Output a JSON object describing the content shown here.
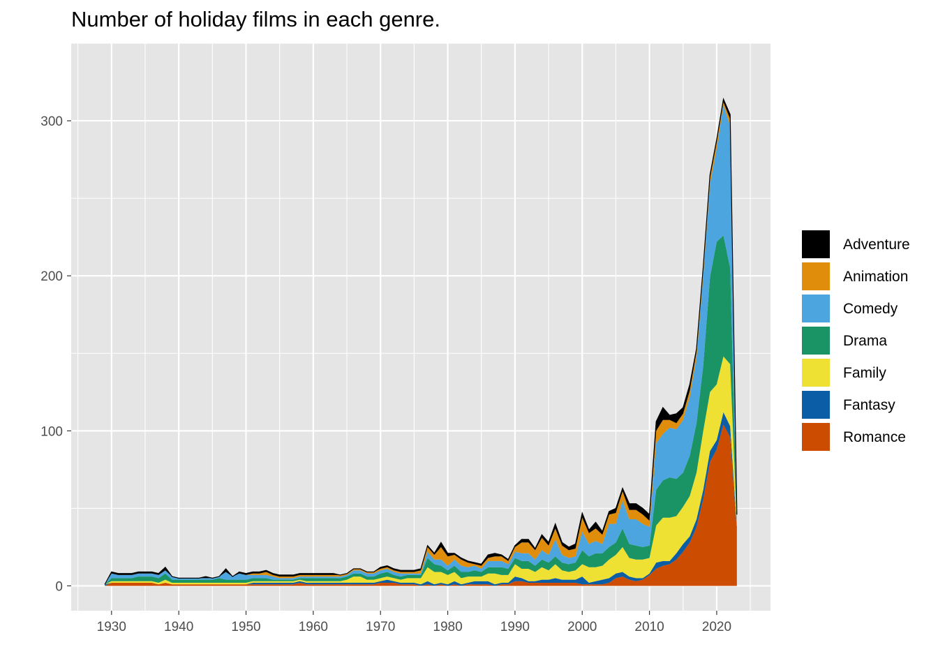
{
  "chart_data": {
    "type": "area",
    "stacked": true,
    "title": "Number of holiday films in each genre.",
    "xlabel": "",
    "ylabel": "",
    "xlim": [
      1924,
      2028
    ],
    "ylim": [
      -16,
      350
    ],
    "x_ticks": [
      1930,
      1940,
      1950,
      1960,
      1970,
      1980,
      1990,
      2000,
      2010,
      2020
    ],
    "y_ticks": [
      0,
      100,
      200,
      300
    ],
    "grid": true,
    "legend_position": "right",
    "legend_order": [
      "Adventure",
      "Animation",
      "Comedy",
      "Drama",
      "Family",
      "Fantasy",
      "Romance"
    ],
    "x": [
      1929,
      1930,
      1931,
      1932,
      1933,
      1934,
      1935,
      1936,
      1937,
      1938,
      1939,
      1940,
      1941,
      1942,
      1943,
      1944,
      1945,
      1946,
      1947,
      1948,
      1949,
      1950,
      1951,
      1952,
      1953,
      1954,
      1955,
      1956,
      1957,
      1958,
      1959,
      1960,
      1961,
      1962,
      1963,
      1964,
      1965,
      1966,
      1967,
      1968,
      1969,
      1970,
      1971,
      1972,
      1973,
      1974,
      1975,
      1976,
      1977,
      1978,
      1979,
      1980,
      1981,
      1982,
      1983,
      1984,
      1985,
      1986,
      1987,
      1988,
      1989,
      1990,
      1991,
      1992,
      1993,
      1994,
      1995,
      1996,
      1997,
      1998,
      1999,
      2000,
      2001,
      2002,
      2003,
      2004,
      2005,
      2006,
      2007,
      2008,
      2009,
      2010,
      2011,
      2012,
      2013,
      2014,
      2015,
      2016,
      2017,
      2018,
      2019,
      2020,
      2021,
      2022,
      2023
    ],
    "series": [
      {
        "name": "Romance",
        "color": "#CC4C02",
        "values": [
          0,
          2,
          2,
          2,
          2,
          2,
          2,
          2,
          1,
          2,
          1,
          1,
          1,
          1,
          1,
          1,
          1,
          1,
          1,
          1,
          1,
          1,
          1,
          1,
          1,
          1,
          1,
          1,
          1,
          2,
          1,
          1,
          1,
          1,
          1,
          1,
          1,
          1,
          1,
          1,
          1,
          2,
          2,
          2,
          1,
          1,
          1,
          0,
          1,
          0,
          1,
          0,
          1,
          0,
          1,
          1,
          1,
          1,
          0,
          1,
          1,
          3,
          3,
          2,
          2,
          2,
          2,
          2,
          2,
          2,
          2,
          1,
          1,
          1,
          1,
          2,
          5,
          6,
          4,
          3,
          4,
          7,
          11,
          13,
          14,
          17,
          22,
          28,
          38,
          56,
          80,
          88,
          104,
          96,
          36
        ]
      },
      {
        "name": "Fantasy",
        "color": "#0B5DA5",
        "values": [
          1,
          0,
          0,
          0,
          0,
          0,
          0,
          0,
          0,
          0,
          0,
          0,
          0,
          0,
          0,
          0,
          0,
          0,
          0,
          0,
          0,
          0,
          1,
          1,
          1,
          1,
          1,
          1,
          1,
          1,
          1,
          1,
          1,
          1,
          1,
          1,
          1,
          1,
          1,
          1,
          1,
          1,
          2,
          1,
          1,
          1,
          1,
          1,
          2,
          1,
          1,
          1,
          2,
          1,
          1,
          2,
          2,
          2,
          1,
          1,
          1,
          3,
          2,
          1,
          1,
          2,
          2,
          3,
          2,
          2,
          2,
          5,
          1,
          2,
          3,
          3,
          3,
          3,
          2,
          2,
          1,
          1,
          4,
          3,
          2,
          4,
          5,
          4,
          5,
          6,
          7,
          6,
          8,
          7,
          2
        ]
      },
      {
        "name": "Family",
        "color": "#EEE133",
        "values": [
          0,
          1,
          1,
          1,
          1,
          1,
          1,
          1,
          1,
          2,
          1,
          1,
          1,
          1,
          1,
          1,
          1,
          1,
          1,
          1,
          1,
          1,
          1,
          1,
          1,
          1,
          1,
          1,
          1,
          1,
          1,
          1,
          1,
          1,
          1,
          1,
          2,
          4,
          4,
          2,
          2,
          2,
          2,
          2,
          2,
          3,
          3,
          4,
          9,
          8,
          7,
          6,
          6,
          4,
          4,
          3,
          3,
          5,
          7,
          5,
          5,
          8,
          6,
          8,
          6,
          8,
          6,
          9,
          6,
          5,
          6,
          8,
          10,
          9,
          9,
          12,
          12,
          16,
          12,
          12,
          12,
          10,
          24,
          28,
          28,
          24,
          24,
          26,
          30,
          38,
          38,
          36,
          36,
          40,
          2
        ]
      },
      {
        "name": "Drama",
        "color": "#1A9464",
        "values": [
          0,
          2,
          2,
          2,
          2,
          3,
          3,
          3,
          3,
          4,
          2,
          2,
          2,
          2,
          2,
          2,
          2,
          3,
          2,
          2,
          2,
          2,
          2,
          2,
          2,
          1,
          1,
          1,
          1,
          1,
          2,
          2,
          2,
          2,
          2,
          2,
          2,
          2,
          2,
          2,
          2,
          3,
          3,
          2,
          2,
          2,
          2,
          2,
          6,
          5,
          4,
          3,
          4,
          4,
          3,
          4,
          3,
          4,
          4,
          5,
          4,
          4,
          5,
          5,
          4,
          5,
          5,
          5,
          5,
          5,
          5,
          9,
          7,
          9,
          8,
          8,
          8,
          12,
          9,
          9,
          8,
          8,
          23,
          24,
          26,
          24,
          22,
          26,
          32,
          42,
          74,
          92,
          78,
          62,
          2
        ]
      },
      {
        "name": "Comedy",
        "color": "#4DA5E0",
        "values": [
          0,
          3,
          2,
          2,
          2,
          2,
          2,
          2,
          2,
          2,
          2,
          1,
          1,
          1,
          1,
          1,
          1,
          1,
          5,
          2,
          4,
          3,
          2,
          2,
          2,
          2,
          1,
          1,
          1,
          1,
          1,
          1,
          1,
          1,
          1,
          1,
          1,
          2,
          2,
          2,
          2,
          2,
          2,
          2,
          2,
          1,
          1,
          1,
          4,
          3,
          4,
          3,
          4,
          4,
          3,
          3,
          2,
          4,
          4,
          4,
          3,
          4,
          5,
          5,
          4,
          6,
          5,
          11,
          5,
          4,
          4,
          12,
          8,
          8,
          6,
          15,
          12,
          18,
          16,
          17,
          15,
          12,
          30,
          30,
          32,
          32,
          34,
          38,
          42,
          58,
          60,
          60,
          84,
          92,
          4
        ]
      },
      {
        "name": "Animation",
        "color": "#E08D0B",
        "values": [
          0,
          0,
          0,
          0,
          0,
          0,
          0,
          0,
          0,
          0,
          0,
          0,
          0,
          0,
          0,
          0,
          0,
          0,
          0,
          0,
          0,
          0,
          1,
          1,
          2,
          1,
          1,
          1,
          1,
          1,
          1,
          1,
          1,
          1,
          1,
          1,
          1,
          1,
          1,
          1,
          1,
          1,
          1,
          1,
          1,
          1,
          1,
          2,
          3,
          3,
          8,
          6,
          3,
          4,
          3,
          1,
          2,
          2,
          3,
          3,
          2,
          3,
          7,
          7,
          6,
          8,
          6,
          7,
          6,
          5,
          5,
          9,
          7,
          8,
          6,
          6,
          7,
          6,
          6,
          6,
          6,
          4,
          8,
          9,
          5,
          4,
          4,
          4,
          4,
          4,
          4,
          4,
          2,
          4,
          0
        ]
      },
      {
        "name": "Adventure",
        "color": "#000000",
        "values": [
          0,
          1,
          1,
          1,
          1,
          1,
          1,
          1,
          1,
          2,
          0,
          0,
          0,
          0,
          0,
          1,
          0,
          0,
          2,
          0,
          1,
          1,
          1,
          1,
          1,
          1,
          1,
          1,
          1,
          1,
          1,
          1,
          1,
          1,
          1,
          0,
          0,
          0,
          0,
          0,
          0,
          1,
          1,
          1,
          1,
          1,
          1,
          1,
          1,
          1,
          3,
          2,
          1,
          1,
          1,
          1,
          1,
          2,
          2,
          1,
          1,
          1,
          2,
          2,
          1,
          2,
          2,
          3,
          2,
          2,
          3,
          3,
          2,
          4,
          2,
          2,
          3,
          2,
          4,
          4,
          4,
          4,
          6,
          8,
          3,
          6,
          4,
          4,
          2,
          2,
          2,
          2,
          2,
          3,
          0
        ]
      }
    ]
  },
  "legend": {
    "items": [
      {
        "label": "Adventure",
        "color": "#000000"
      },
      {
        "label": "Animation",
        "color": "#E08D0B"
      },
      {
        "label": "Comedy",
        "color": "#4DA5E0"
      },
      {
        "label": "Drama",
        "color": "#1A9464"
      },
      {
        "label": "Family",
        "color": "#EEE133"
      },
      {
        "label": "Fantasy",
        "color": "#0B5DA5"
      },
      {
        "label": "Romance",
        "color": "#CC4C02"
      }
    ]
  },
  "colors": {
    "panel_bg": "#E5E5E5",
    "grid": "#FFFFFF",
    "axis_text": "#4D4D4D",
    "tick": "#333333"
  }
}
